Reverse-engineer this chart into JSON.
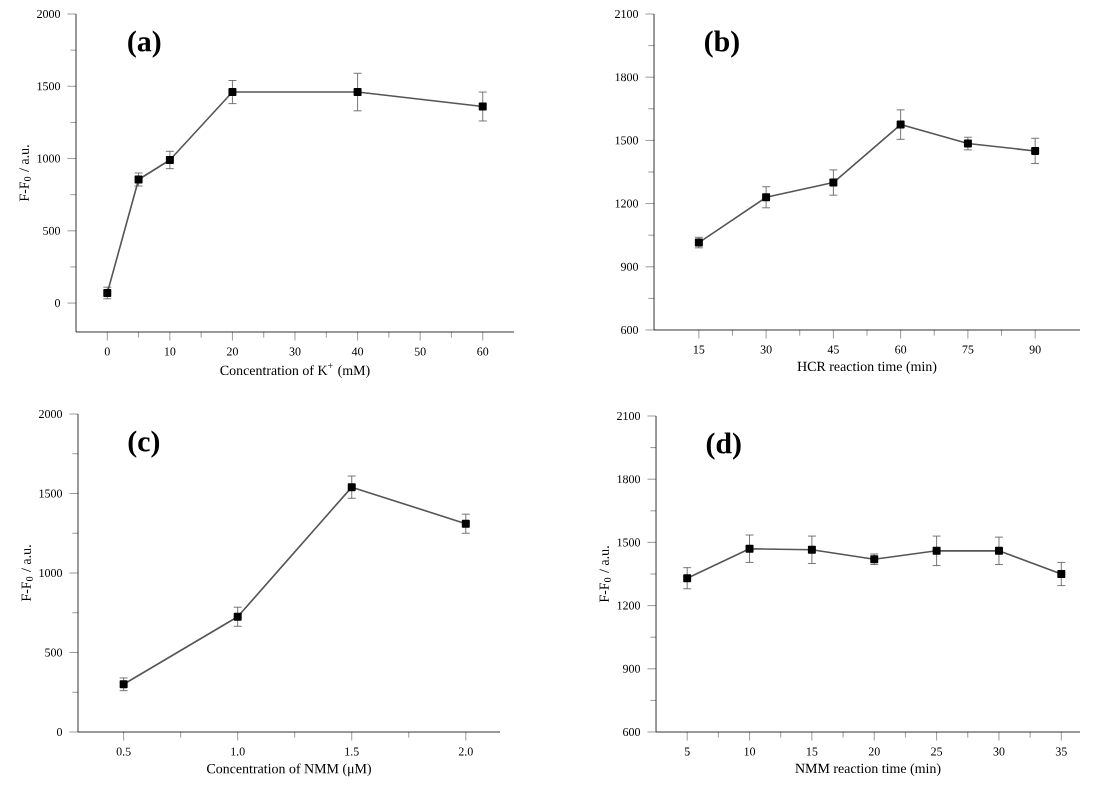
{
  "chart_data": [
    {
      "type": "line",
      "annotations": [
        "(a)"
      ],
      "xlabel": "Concentration of K$^{+}$ (mM)",
      "ylabel": "F-F$_{0}$ / a.u.",
      "x": [
        0,
        5,
        10,
        20,
        40,
        60
      ],
      "values": [
        70,
        855,
        990,
        1460,
        1460,
        1360
      ],
      "errors": [
        40,
        45,
        60,
        80,
        130,
        100
      ],
      "color": "#555555",
      "marker": "square",
      "line_style": "solid",
      "xlim": [
        -5,
        65
      ],
      "xticks": [
        0,
        10,
        20,
        30,
        40,
        50,
        60
      ],
      "ylim": [
        -200,
        2000
      ],
      "yticks": [
        0,
        500,
        1000,
        1500,
        2000
      ]
    },
    {
      "type": "line",
      "annotations": [
        "(b)"
      ],
      "xlabel": "HCR reaction time (min)",
      "x": [
        15,
        30,
        45,
        60,
        75,
        90
      ],
      "values": [
        1015,
        1230,
        1300,
        1575,
        1485,
        1450
      ],
      "errors": [
        25,
        50,
        60,
        70,
        30,
        60
      ],
      "color": "#555555",
      "marker": "square",
      "line_style": "solid",
      "xlim": [
        5,
        100
      ],
      "xticks": [
        15,
        30,
        45,
        60,
        75,
        90
      ],
      "ylim": [
        600,
        2100
      ],
      "yticks": [
        600,
        900,
        1200,
        1500,
        1800,
        2100
      ]
    },
    {
      "type": "line",
      "annotations": [
        "(c)"
      ],
      "xlabel": "Concentration of NMM (μM)",
      "ylabel": "F-F$_{0}$ / a.u.",
      "x": [
        0.5,
        1.0,
        1.5,
        2.0
      ],
      "values": [
        300,
        725,
        1540,
        1310
      ],
      "errors": [
        40,
        60,
        70,
        60
      ],
      "color": "#555555",
      "marker": "square",
      "line_style": "solid",
      "xlim": [
        0.3,
        2.15
      ],
      "xticks": [
        0.5,
        {
          "value": 1.0,
          "label": "1.0"
        },
        1.5,
        {
          "value": 2.0,
          "label": "2.0"
        }
      ],
      "ylim": [
        0,
        2000
      ],
      "yticks": [
        0,
        500,
        1000,
        1500,
        2000
      ]
    },
    {
      "type": "line",
      "annotations": [
        "(d)"
      ],
      "xlabel": "NMM reaction time (min)",
      "ylabel": "F-F$_{0}$ / a.u.",
      "x": [
        5,
        10,
        15,
        20,
        25,
        30,
        35
      ],
      "values": [
        1330,
        1470,
        1465,
        1420,
        1460,
        1460,
        1350
      ],
      "errors": [
        50,
        65,
        65,
        25,
        70,
        65,
        55
      ],
      "color": "#555555",
      "marker": "square",
      "line_style": "solid",
      "xlim": [
        2.5,
        36.5
      ],
      "xticks": [
        5,
        10,
        15,
        20,
        25,
        30,
        35
      ],
      "ylim": [
        600,
        2100
      ],
      "yticks": [
        600,
        900,
        1200,
        1500,
        1800,
        2100
      ]
    }
  ]
}
